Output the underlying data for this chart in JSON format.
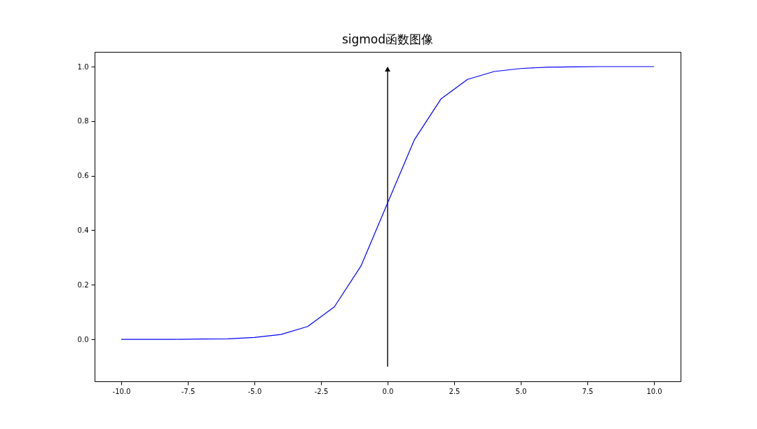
{
  "chart_data": {
    "type": "line",
    "title": "sigmod函数图像",
    "x": [
      -10,
      -9,
      -8,
      -7,
      -6,
      -5,
      -4,
      -3,
      -2,
      -1,
      0,
      1,
      2,
      3,
      4,
      5,
      6,
      7,
      8,
      9,
      10
    ],
    "series": [
      {
        "color": "#0000ff",
        "values": [
          0.0,
          0.0,
          0.0,
          0.001,
          0.002,
          0.007,
          0.018,
          0.047,
          0.119,
          0.269,
          0.5,
          0.731,
          0.881,
          0.953,
          0.982,
          0.993,
          0.998,
          0.999,
          1.0,
          1.0,
          1.0
        ]
      }
    ],
    "xlim": [
      -11,
      11
    ],
    "ylim": [
      -0.154,
      1.054
    ],
    "xticks": [
      {
        "value": -10,
        "label": "-10.0"
      },
      {
        "value": -7.5,
        "label": "-7.5"
      },
      {
        "value": -5,
        "label": "-5.0"
      },
      {
        "value": -2.5,
        "label": "-2.5"
      },
      {
        "value": 0,
        "label": "0.0"
      },
      {
        "value": 2.5,
        "label": "2.5"
      },
      {
        "value": 5,
        "label": "5.0"
      },
      {
        "value": 7.5,
        "label": "7.5"
      },
      {
        "value": 10,
        "label": "10.0"
      }
    ],
    "yticks": [
      {
        "value": 0,
        "label": "0.0"
      },
      {
        "value": 0.2,
        "label": "0.2"
      },
      {
        "value": 0.4,
        "label": "0.4"
      },
      {
        "value": 0.6,
        "label": "0.6"
      },
      {
        "value": 0.8,
        "label": "0.8"
      },
      {
        "value": 1,
        "label": "1.0"
      }
    ],
    "grid": false
  }
}
